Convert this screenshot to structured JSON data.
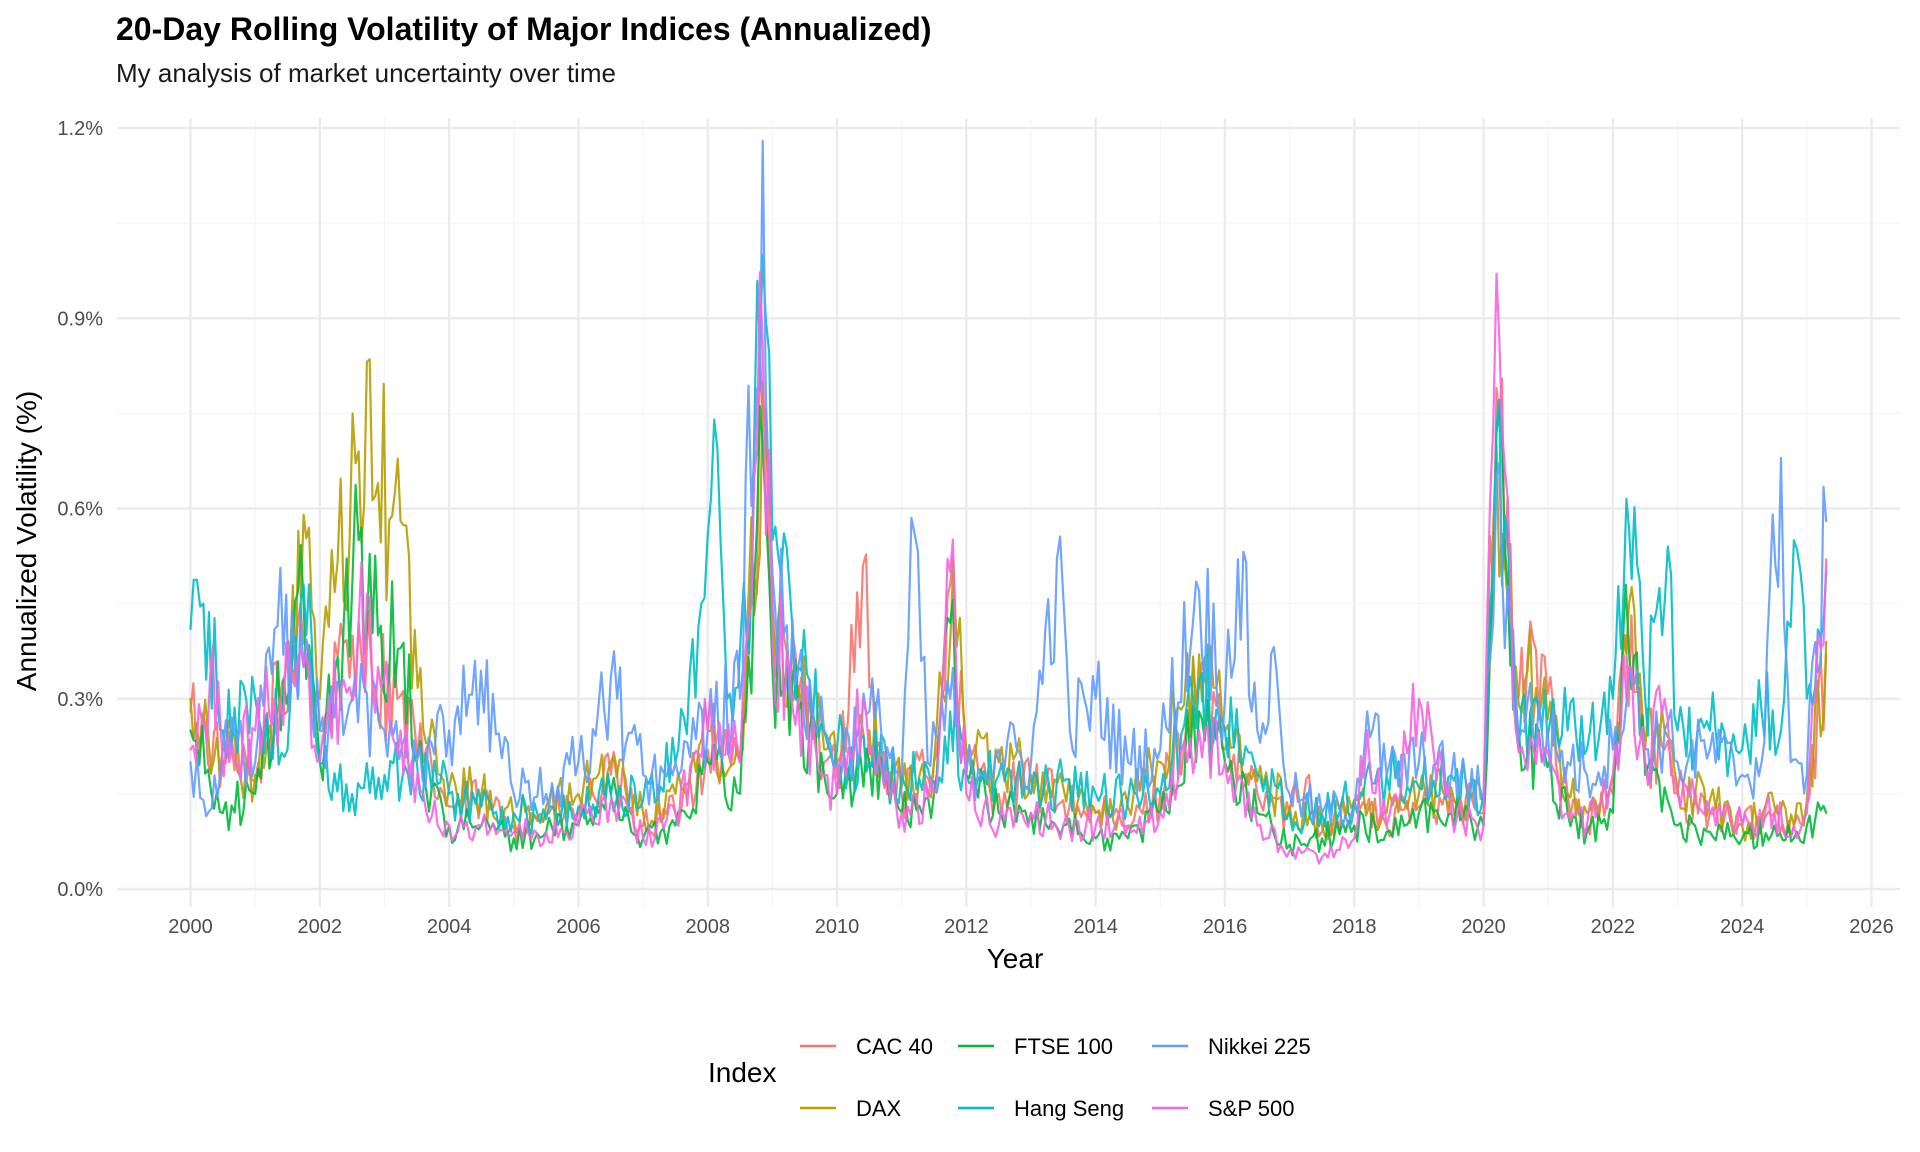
{
  "chart_data": {
    "type": "line",
    "title": "20-Day Rolling Volatility of Major Indices (Annualized)",
    "subtitle": "My analysis of market uncertainty over time",
    "xlabel": "Year",
    "ylabel": "Annualized Volatility (%)",
    "xlim": [
      2000,
      2026
    ],
    "ylim": [
      0,
      1.2
    ],
    "x_ticks": [
      "2000",
      "2002",
      "2004",
      "2006",
      "2008",
      "2010",
      "2012",
      "2014",
      "2016",
      "2018",
      "2020",
      "2022",
      "2024",
      "2026"
    ],
    "y_ticks": [
      "0.0%",
      "0.3%",
      "0.6%",
      "0.9%",
      "1.2%"
    ],
    "grid": true,
    "legend": {
      "title": "Index",
      "placement": "bottom"
    },
    "series": [
      {
        "name": "CAC 40",
        "color": "#F8766D",
        "x": [
          2000.0,
          2000.5,
          2001.0,
          2001.7,
          2002.0,
          2002.6,
          2002.8,
          2003.2,
          2003.6,
          2004.0,
          2004.5,
          2005.0,
          2005.5,
          2006.0,
          2006.5,
          2007.0,
          2007.5,
          2008.0,
          2008.5,
          2008.85,
          2009.0,
          2009.4,
          2009.8,
          2010.0,
          2010.4,
          2010.6,
          2011.0,
          2011.5,
          2011.75,
          2012.0,
          2012.5,
          2013.0,
          2013.5,
          2014.0,
          2014.5,
          2015.0,
          2015.6,
          2016.0,
          2016.5,
          2017.0,
          2017.3,
          2017.5,
          2018.0,
          2018.5,
          2019.0,
          2019.5,
          2020.0,
          2020.2,
          2020.5,
          2020.9,
          2021.3,
          2021.6,
          2022.0,
          2022.2,
          2022.5,
          2022.8,
          2023.0,
          2023.5,
          2024.0,
          2024.5,
          2024.8,
          2025.0,
          2025.3
        ],
        "y": [
          0.28,
          0.2,
          0.17,
          0.45,
          0.25,
          0.42,
          0.35,
          0.3,
          0.2,
          0.13,
          0.14,
          0.1,
          0.12,
          0.12,
          0.18,
          0.1,
          0.12,
          0.22,
          0.2,
          0.75,
          0.42,
          0.3,
          0.2,
          0.18,
          0.51,
          0.22,
          0.15,
          0.2,
          0.48,
          0.2,
          0.15,
          0.17,
          0.14,
          0.12,
          0.1,
          0.15,
          0.32,
          0.22,
          0.15,
          0.12,
          0.18,
          0.09,
          0.14,
          0.1,
          0.13,
          0.15,
          0.12,
          0.79,
          0.3,
          0.37,
          0.15,
          0.1,
          0.15,
          0.4,
          0.2,
          0.22,
          0.15,
          0.12,
          0.1,
          0.12,
          0.1,
          0.13,
          0.37
        ]
      },
      {
        "name": "DAX",
        "color": "#B79F00",
        "x": [
          2000.0,
          2000.5,
          2001.0,
          2001.5,
          2001.75,
          2002.0,
          2002.6,
          2002.9,
          2003.25,
          2003.6,
          2004.0,
          2004.5,
          2005.0,
          2005.5,
          2006.0,
          2006.5,
          2007.0,
          2007.5,
          2008.0,
          2008.5,
          2008.85,
          2009.0,
          2009.4,
          2009.8,
          2010.0,
          2010.5,
          2011.0,
          2011.5,
          2011.8,
          2012.0,
          2012.5,
          2013.0,
          2013.5,
          2014.0,
          2014.5,
          2015.0,
          2015.6,
          2016.0,
          2016.5,
          2017.0,
          2017.5,
          2018.0,
          2018.5,
          2019.0,
          2019.5,
          2020.0,
          2020.2,
          2020.5,
          2020.9,
          2021.3,
          2021.6,
          2022.0,
          2022.25,
          2022.5,
          2022.8,
          2023.0,
          2023.5,
          2024.0,
          2024.5,
          2024.8,
          2025.0,
          2025.3
        ],
        "y": [
          0.3,
          0.22,
          0.18,
          0.28,
          0.59,
          0.3,
          0.69,
          0.64,
          0.58,
          0.25,
          0.16,
          0.15,
          0.11,
          0.13,
          0.15,
          0.2,
          0.12,
          0.15,
          0.25,
          0.2,
          0.8,
          0.45,
          0.32,
          0.22,
          0.2,
          0.25,
          0.16,
          0.2,
          0.52,
          0.22,
          0.2,
          0.18,
          0.16,
          0.12,
          0.13,
          0.2,
          0.37,
          0.25,
          0.17,
          0.13,
          0.1,
          0.14,
          0.12,
          0.15,
          0.16,
          0.13,
          0.7,
          0.35,
          0.3,
          0.15,
          0.12,
          0.18,
          0.45,
          0.22,
          0.25,
          0.16,
          0.14,
          0.1,
          0.13,
          0.1,
          0.14,
          0.39
        ]
      },
      {
        "name": "FTSE 100",
        "color": "#00BA38",
        "x": [
          2000.0,
          2000.5,
          2001.0,
          2001.75,
          2002.0,
          2002.6,
          2002.9,
          2003.25,
          2003.6,
          2004.0,
          2004.5,
          2005.0,
          2005.5,
          2006.0,
          2006.5,
          2007.0,
          2007.5,
          2008.0,
          2008.5,
          2008.85,
          2009.0,
          2009.4,
          2009.8,
          2010.0,
          2010.5,
          2011.0,
          2011.5,
          2011.75,
          2012.0,
          2012.5,
          2013.0,
          2013.5,
          2014.0,
          2014.5,
          2015.0,
          2015.6,
          2016.0,
          2016.5,
          2017.0,
          2017.5,
          2018.0,
          2018.5,
          2019.0,
          2019.5,
          2020.0,
          2020.2,
          2020.5,
          2020.9,
          2021.3,
          2021.6,
          2022.0,
          2022.2,
          2022.5,
          2022.8,
          2023.0,
          2023.5,
          2024.0,
          2024.5,
          2024.8,
          2025.0,
          2025.3
        ],
        "y": [
          0.25,
          0.12,
          0.15,
          0.45,
          0.2,
          0.55,
          0.4,
          0.38,
          0.18,
          0.1,
          0.1,
          0.08,
          0.09,
          0.1,
          0.15,
          0.08,
          0.1,
          0.2,
          0.15,
          0.7,
          0.35,
          0.28,
          0.18,
          0.15,
          0.2,
          0.12,
          0.15,
          0.42,
          0.18,
          0.12,
          0.12,
          0.1,
          0.08,
          0.08,
          0.12,
          0.28,
          0.2,
          0.12,
          0.07,
          0.08,
          0.1,
          0.09,
          0.12,
          0.12,
          0.1,
          0.72,
          0.25,
          0.2,
          0.12,
          0.09,
          0.12,
          0.48,
          0.18,
          0.16,
          0.1,
          0.09,
          0.08,
          0.1,
          0.08,
          0.1,
          0.12
        ]
      },
      {
        "name": "Hang Seng",
        "color": "#00BFC4",
        "x": [
          2000.0,
          2000.2,
          2000.5,
          2001.0,
          2001.5,
          2001.75,
          2002.0,
          2002.5,
          2003.0,
          2003.5,
          2004.0,
          2004.5,
          2005.0,
          2005.5,
          2006.0,
          2006.5,
          2007.0,
          2007.5,
          2007.9,
          2008.1,
          2008.3,
          2008.6,
          2008.85,
          2009.0,
          2009.4,
          2009.8,
          2010.0,
          2010.5,
          2011.0,
          2011.5,
          2011.75,
          2012.0,
          2012.5,
          2013.0,
          2013.5,
          2014.0,
          2014.5,
          2015.0,
          2015.6,
          2016.0,
          2016.5,
          2017.0,
          2017.5,
          2018.0,
          2018.5,
          2019.0,
          2019.5,
          2020.0,
          2020.2,
          2020.5,
          2020.9,
          2021.3,
          2021.6,
          2022.0,
          2022.25,
          2022.5,
          2022.85,
          2023.0,
          2023.5,
          2024.0,
          2024.3,
          2024.6,
          2024.8,
          2025.0,
          2025.3
        ],
        "y": [
          0.41,
          0.45,
          0.25,
          0.3,
          0.22,
          0.48,
          0.2,
          0.15,
          0.18,
          0.2,
          0.15,
          0.13,
          0.12,
          0.11,
          0.13,
          0.15,
          0.14,
          0.2,
          0.45,
          0.74,
          0.3,
          0.4,
          1.0,
          0.55,
          0.35,
          0.25,
          0.22,
          0.2,
          0.18,
          0.17,
          0.28,
          0.18,
          0.18,
          0.15,
          0.17,
          0.15,
          0.14,
          0.15,
          0.33,
          0.25,
          0.18,
          0.12,
          0.12,
          0.14,
          0.18,
          0.16,
          0.18,
          0.15,
          0.73,
          0.3,
          0.25,
          0.25,
          0.22,
          0.3,
          0.57,
          0.3,
          0.54,
          0.25,
          0.25,
          0.22,
          0.28,
          0.25,
          0.55,
          0.3,
          0.5
        ]
      },
      {
        "name": "Nikkei 225",
        "color": "#619CFF",
        "x": [
          2000.0,
          2000.2,
          2000.5,
          2001.0,
          2001.3,
          2001.75,
          2002.0,
          2002.5,
          2003.0,
          2003.5,
          2004.0,
          2004.4,
          2005.0,
          2005.5,
          2006.0,
          2006.4,
          2006.6,
          2007.0,
          2007.5,
          2008.0,
          2008.5,
          2008.85,
          2009.0,
          2009.4,
          2009.8,
          2010.0,
          2010.5,
          2011.0,
          2011.2,
          2011.4,
          2011.75,
          2012.0,
          2012.5,
          2013.0,
          2013.4,
          2013.6,
          2014.0,
          2014.5,
          2015.0,
          2015.6,
          2016.0,
          2016.2,
          2016.5,
          2016.8,
          2017.0,
          2017.5,
          2018.0,
          2018.2,
          2018.5,
          2019.0,
          2019.5,
          2020.0,
          2020.2,
          2020.5,
          2020.9,
          2021.3,
          2021.6,
          2022.0,
          2022.25,
          2022.5,
          2022.8,
          2023.0,
          2023.5,
          2024.0,
          2024.3,
          2024.6,
          2024.75,
          2025.0,
          2025.3
        ],
        "y": [
          0.2,
          0.14,
          0.22,
          0.2,
          0.41,
          0.35,
          0.25,
          0.3,
          0.25,
          0.2,
          0.25,
          0.36,
          0.15,
          0.15,
          0.2,
          0.28,
          0.3,
          0.18,
          0.2,
          0.25,
          0.3,
          1.18,
          0.5,
          0.35,
          0.25,
          0.2,
          0.28,
          0.18,
          0.56,
          0.2,
          0.3,
          0.18,
          0.22,
          0.2,
          0.52,
          0.25,
          0.3,
          0.2,
          0.22,
          0.47,
          0.3,
          0.52,
          0.25,
          0.34,
          0.15,
          0.12,
          0.13,
          0.28,
          0.18,
          0.2,
          0.18,
          0.15,
          0.65,
          0.3,
          0.25,
          0.2,
          0.18,
          0.22,
          0.35,
          0.22,
          0.25,
          0.2,
          0.22,
          0.18,
          0.2,
          0.68,
          0.2,
          0.18,
          0.58
        ]
      },
      {
        "name": "S&P 500",
        "color": "#F564E3",
        "x": [
          2000.0,
          2000.3,
          2000.6,
          2001.0,
          2001.3,
          2001.75,
          2002.0,
          2002.6,
          2002.9,
          2003.25,
          2003.6,
          2004.0,
          2004.5,
          2005.0,
          2005.5,
          2006.0,
          2006.5,
          2007.0,
          2007.5,
          2008.0,
          2008.5,
          2008.85,
          2009.0,
          2009.4,
          2009.8,
          2010.0,
          2010.4,
          2010.6,
          2011.0,
          2011.5,
          2011.75,
          2012.0,
          2012.5,
          2013.0,
          2013.5,
          2014.0,
          2014.5,
          2015.0,
          2015.6,
          2016.0,
          2016.5,
          2017.0,
          2017.5,
          2018.0,
          2018.2,
          2018.5,
          2019.0,
          2019.5,
          2020.0,
          2020.2,
          2020.5,
          2020.9,
          2021.3,
          2021.6,
          2022.0,
          2022.25,
          2022.5,
          2022.8,
          2023.0,
          2023.5,
          2024.0,
          2024.5,
          2024.8,
          2025.0,
          2025.3
        ],
        "y": [
          0.22,
          0.33,
          0.2,
          0.25,
          0.3,
          0.35,
          0.2,
          0.42,
          0.35,
          0.25,
          0.15,
          0.1,
          0.1,
          0.09,
          0.09,
          0.1,
          0.14,
          0.08,
          0.12,
          0.25,
          0.2,
          0.86,
          0.4,
          0.3,
          0.18,
          0.15,
          0.3,
          0.18,
          0.12,
          0.15,
          0.5,
          0.15,
          0.1,
          0.12,
          0.1,
          0.1,
          0.1,
          0.12,
          0.25,
          0.2,
          0.1,
          0.06,
          0.05,
          0.08,
          0.25,
          0.1,
          0.3,
          0.12,
          0.1,
          0.97,
          0.25,
          0.2,
          0.12,
          0.1,
          0.18,
          0.35,
          0.2,
          0.3,
          0.15,
          0.12,
          0.1,
          0.12,
          0.1,
          0.12,
          0.52
        ]
      }
    ]
  }
}
